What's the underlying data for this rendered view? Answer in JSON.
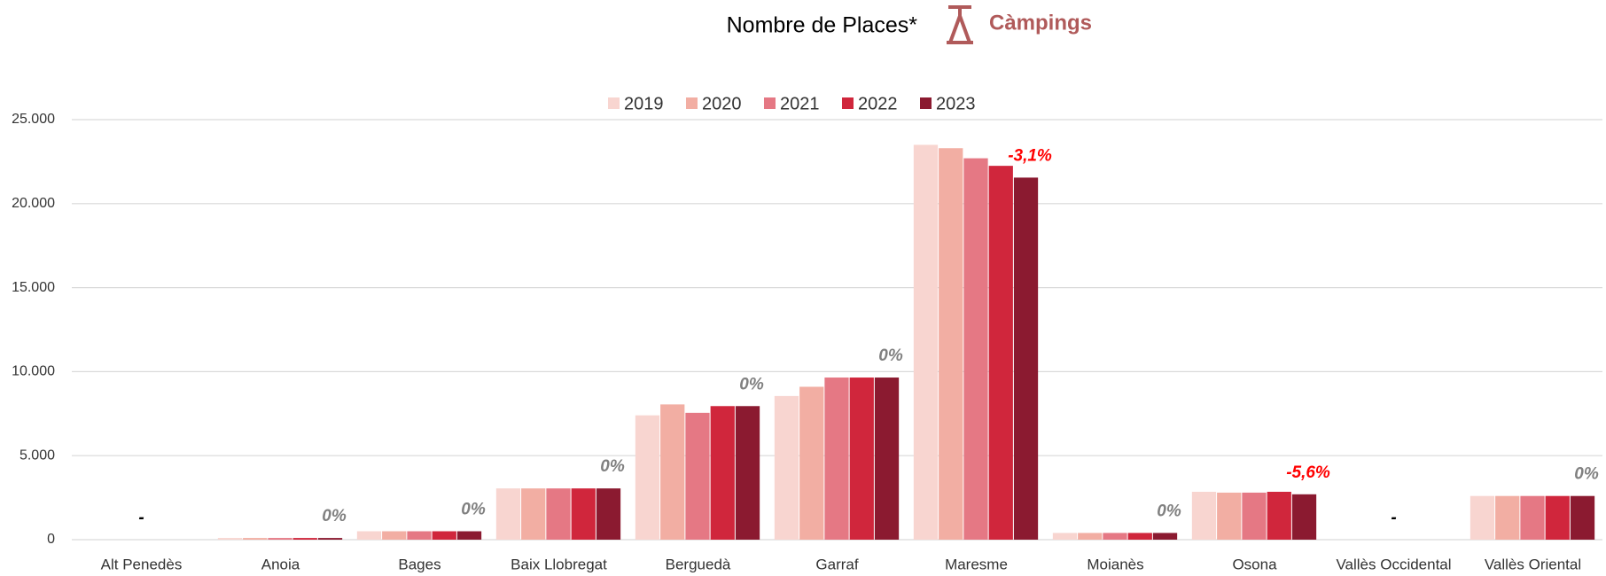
{
  "chart_data": {
    "type": "bar",
    "title": "Nombre de Places*",
    "subtitle": "Càmpings",
    "categories": [
      "Alt Penedès",
      "Anoia",
      "Bages",
      "Baix Llobregat",
      "Berguedà",
      "Garraf",
      "Maresme",
      "Moianès",
      "Osona",
      "Vallès Occidental",
      "Vallès Oriental"
    ],
    "series": [
      {
        "name": "2019",
        "color": "#f8d5d0",
        "values": [
          0,
          100,
          500,
          3050,
          7400,
          8550,
          23500,
          400,
          2850,
          0,
          2600
        ]
      },
      {
        "name": "2020",
        "color": "#f2aea3",
        "values": [
          0,
          100,
          500,
          3050,
          8050,
          9100,
          23300,
          400,
          2800,
          0,
          2600
        ]
      },
      {
        "name": "2021",
        "color": "#e57884",
        "values": [
          0,
          100,
          500,
          3050,
          7550,
          9650,
          22700,
          400,
          2800,
          0,
          2600
        ]
      },
      {
        "name": "2022",
        "color": "#d0263c",
        "values": [
          0,
          100,
          500,
          3050,
          7950,
          9650,
          22250,
          400,
          2850,
          0,
          2600
        ]
      },
      {
        "name": "2023",
        "color": "#8b1a30",
        "values": [
          0,
          100,
          500,
          3050,
          7950,
          9650,
          21550,
          400,
          2700,
          0,
          2600
        ]
      }
    ],
    "annotations": [
      "-",
      "0%",
      "0%",
      "0%",
      "0%",
      "0%",
      "-3,1%",
      "0%",
      "-5,6%",
      "-",
      "0%"
    ],
    "annotation_colors": [
      "#000000",
      "#808080",
      "#808080",
      "#808080",
      "#808080",
      "#808080",
      "#ff0000",
      "#808080",
      "#ff0000",
      "#000000",
      "#808080"
    ],
    "ylim": [
      0,
      25000
    ],
    "yticks": [
      0,
      {
        "value": 5000,
        "label": "5.000"
      },
      {
        "value": 10000,
        "label": "10.000"
      },
      {
        "value": 15000,
        "label": "15.000"
      },
      {
        "value": 20000,
        "label": "20.000"
      },
      {
        "value": 25000,
        "label": "25.000"
      }
    ],
    "grid": true,
    "legend": "top"
  }
}
